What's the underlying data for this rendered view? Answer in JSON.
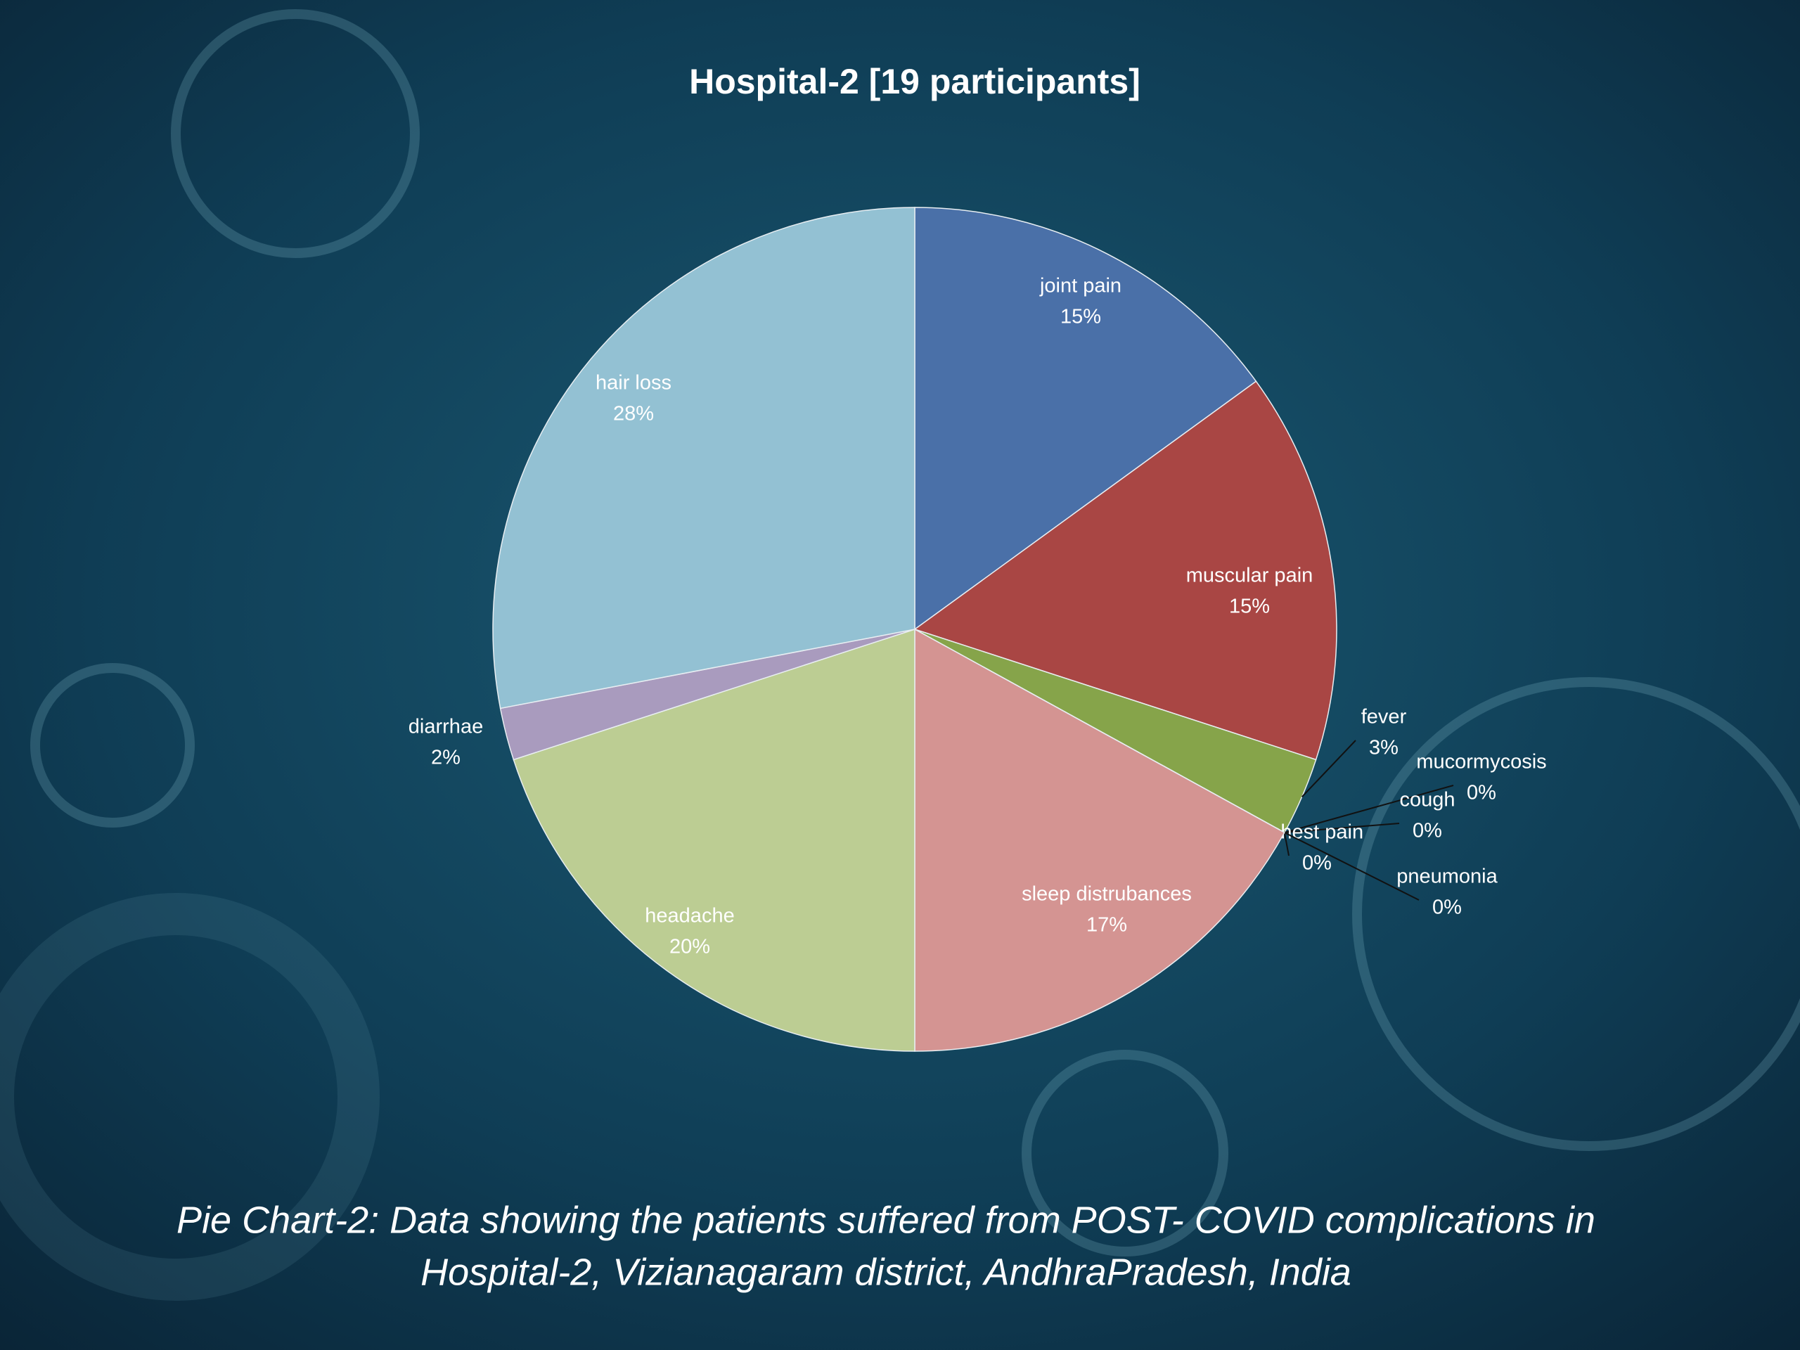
{
  "chart_data": {
    "type": "pie",
    "title": "Hospital-2 [19 participants]",
    "caption": [
      "Pie Chart-2: Data showing the patients suffered from POST- COVID complications in",
      "Hospital-2, Vizianagaram district, AndhraPradesh, India"
    ],
    "categories": [
      "joint pain",
      "muscular pain",
      "fever",
      "mucormycosis",
      "cough",
      "chest pain",
      "pneumonia",
      "sleep distrubances",
      "headache",
      "diarrhae",
      "hair loss"
    ],
    "values": [
      15,
      15,
      3,
      0,
      0,
      0,
      0,
      17,
      20,
      2,
      28
    ],
    "value_labels": [
      "15%",
      "15%",
      "3%",
      "0%",
      "0%",
      "0%",
      "0%",
      "17%",
      "20%",
      "2%",
      "28%"
    ],
    "colors": [
      "#4a70a8",
      "#a94644",
      "#86a44a",
      "#6e548d",
      "#3e97b0",
      "#d9813a",
      "#93a9cf",
      "#d49492",
      "#bccd93",
      "#a99bbe",
      "#93c1d3"
    ]
  }
}
